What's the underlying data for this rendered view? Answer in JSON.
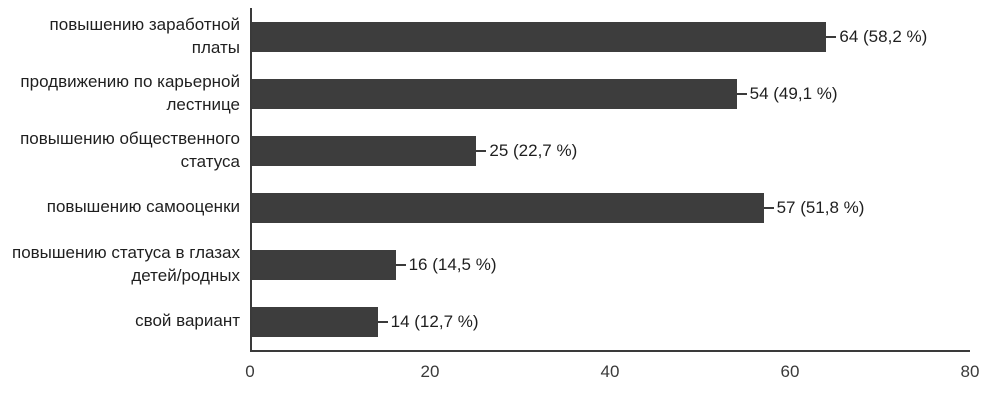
{
  "chart_data": {
    "type": "bar",
    "orientation": "horizontal",
    "title": "",
    "xlabel": "",
    "ylabel": "",
    "categories": [
      "повышению заработной платы",
      "продвижению по карьерной лестнице",
      "повышению общественного статуса",
      "повышению самооценки",
      "повышению статуса в глазах детей/родных",
      "свой вариант"
    ],
    "category_lines": [
      [
        "повышению заработной платы"
      ],
      [
        "продвижению по карьерной",
        "лестнице"
      ],
      [
        "повышению общественного",
        "статуса"
      ],
      [
        "повышению самооценки"
      ],
      [
        "повышению статуса в глазах",
        "детей/родных"
      ],
      [
        "свой вариант"
      ]
    ],
    "values": [
      64,
      54,
      25,
      57,
      16,
      14
    ],
    "value_labels": [
      "64 (58,2 %)",
      "54 (49,1 %)",
      "25 (22,7 %)",
      "57 (51,8 %)",
      "16 (14,5 %)",
      "14 (12,7 %)"
    ],
    "xlim": [
      0,
      80
    ],
    "xticks": [
      0,
      20,
      40,
      60,
      80
    ],
    "grid": false,
    "legend": false,
    "bar_color": "#3d3d3d",
    "axis_color": "#3a3a3a",
    "text_color": "#1f1f1f",
    "background_color": "#ffffff"
  }
}
